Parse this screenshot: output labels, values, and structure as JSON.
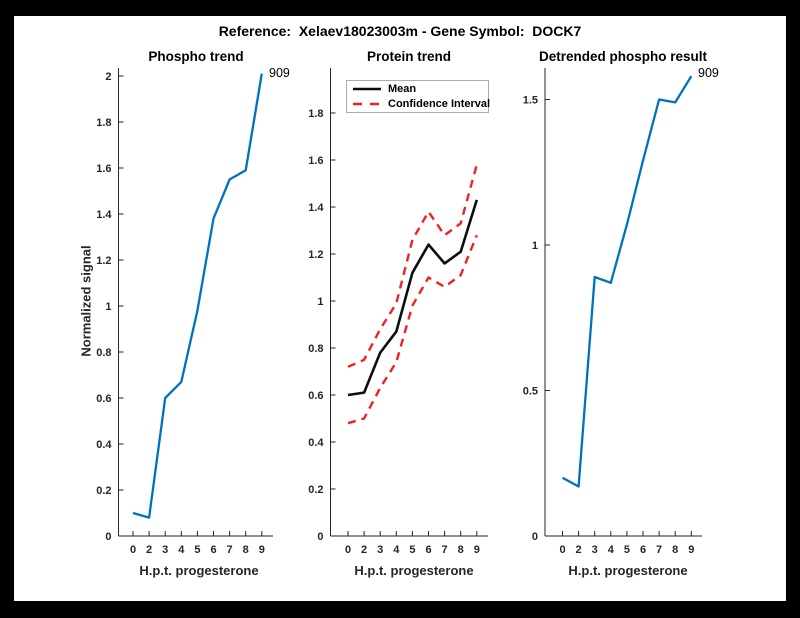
{
  "figure": {
    "title": "Reference:  Xelaev18023003m - Gene Symbol:  DOCK7",
    "frame_color": "#000000",
    "canvas_color": "#ffffff"
  },
  "colors": {
    "blue": "#0072BD",
    "red": "#ee2222",
    "black_line": "#0d0d0d",
    "axis": "#262626"
  },
  "chart_data": [
    {
      "type": "line",
      "title": "Phospho trend",
      "xlabel": "H.p.t. progesterone",
      "ylabel": "Normalized signal",
      "categories": [
        "0",
        "2",
        "3",
        "4",
        "5",
        "6",
        "7",
        "8",
        "9"
      ],
      "ytick_labels": [
        "0",
        "0.2",
        "0.4",
        "0.6",
        "0.8",
        "1",
        "1.2",
        "1.4",
        "1.6",
        "1.8",
        "2"
      ],
      "ylim": [
        0,
        2.03
      ],
      "grid": false,
      "annotation": {
        "text": "909"
      },
      "series": [
        {
          "name": "phospho",
          "color_key": "blue",
          "style": "solid",
          "values": [
            0.1,
            0.08,
            0.6,
            0.67,
            0.98,
            1.38,
            1.55,
            1.59,
            2.01
          ]
        }
      ]
    },
    {
      "type": "line",
      "title": "Protein trend",
      "xlabel": "H.p.t. progesterone",
      "ylabel": "",
      "categories": [
        "0",
        "2",
        "3",
        "4",
        "5",
        "6",
        "7",
        "8",
        "9"
      ],
      "ytick_labels": [
        "0",
        "0.2",
        "0.4",
        "0.6",
        "0.8",
        "1",
        "1.2",
        "1.4",
        "1.6",
        "1.8"
      ],
      "ylim": [
        0,
        1.99
      ],
      "grid": false,
      "legend": {
        "position": "northwest",
        "entries": [
          {
            "label": "Mean",
            "color_key": "black_line",
            "style": "solid"
          },
          {
            "label": "Confidence Interval",
            "color_key": "red",
            "style": "dashed"
          }
        ]
      },
      "series": [
        {
          "name": "ci-upper",
          "color_key": "red",
          "style": "dashed",
          "values": [
            0.72,
            0.75,
            0.88,
            0.99,
            1.26,
            1.38,
            1.28,
            1.33,
            1.58
          ]
        },
        {
          "name": "ci-lower",
          "color_key": "red",
          "style": "dashed",
          "values": [
            0.48,
            0.5,
            0.63,
            0.74,
            0.98,
            1.1,
            1.06,
            1.11,
            1.28
          ]
        },
        {
          "name": "mean",
          "color_key": "black_line",
          "style": "solid",
          "values": [
            0.6,
            0.61,
            0.78,
            0.87,
            1.12,
            1.24,
            1.16,
            1.21,
            1.43
          ]
        }
      ]
    },
    {
      "type": "line",
      "title": "Detrended phospho result",
      "xlabel": "H.p.t. progesterone",
      "ylabel": "",
      "categories": [
        "0",
        "2",
        "3",
        "4",
        "5",
        "6",
        "7",
        "8",
        "9"
      ],
      "ytick_labels": [
        "0",
        "0.5",
        "1",
        "1.5"
      ],
      "ylim": [
        0,
        1.61
      ],
      "grid": false,
      "annotation": {
        "text": "909"
      },
      "series": [
        {
          "name": "detrended-phospho",
          "color_key": "blue",
          "style": "solid",
          "values": [
            0.2,
            0.17,
            0.89,
            0.87,
            1.07,
            1.29,
            1.5,
            1.49,
            1.58
          ]
        }
      ]
    }
  ]
}
